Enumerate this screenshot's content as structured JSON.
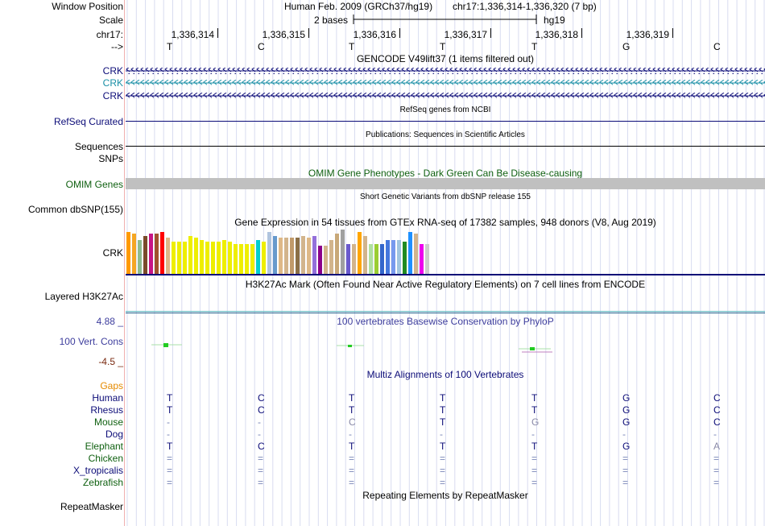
{
  "labels": {
    "window_position": "Window Position",
    "scale": "Scale",
    "chrom": "chr17:",
    "strand": "-->",
    "crk1": "CRK",
    "crk2": "CRK",
    "crk3": "CRK",
    "refseq": "RefSeq Curated",
    "sequences": "Sequences",
    "snps": "SNPs",
    "omim": "OMIM Genes",
    "dbsnp": "Common dbSNP(155)",
    "gtex_gene": "CRK",
    "h3k27ac": "Layered H3K27Ac",
    "cons_max": "4.88 _",
    "cons": "100 Vert. Cons",
    "cons_min": "-4.5 _",
    "gaps": "Gaps",
    "repeatmasker": "RepeatMasker"
  },
  "header": {
    "assembly": "Human Feb. 2009 (GRCh37/hg19)",
    "position": "chr17:1,336,314-1,336,320 (7 bp)",
    "scale_text": "2 bases",
    "scale_db": "hg19"
  },
  "ruler": {
    "positions": [
      "1,336,314",
      "1,336,315",
      "1,336,316",
      "1,336,317",
      "1,336,318",
      "1,336,319"
    ],
    "bases": [
      "T",
      "C",
      "T",
      "T",
      "T",
      "G",
      "C"
    ]
  },
  "tracks": {
    "gencode": "GENCODE V49lift37 (1 items filtered out)",
    "refseq": "RefSeq genes from NCBI",
    "publications": "Publications: Sequences in Scientific Articles",
    "omim": "OMIM Gene Phenotypes - Dark Green Can Be Disease-causing",
    "dbsnp": "Short Genetic Variants from dbSNP release 155",
    "gtex": "Gene Expression in 54 tissues from GTEx RNA-seq of 17382 samples, 948 donors (V8, Aug 2019)",
    "h3k27ac": "H3K27Ac Mark (Often Found Near Active Regulatory Elements) on 7 cell lines from ENCODE",
    "conservation": "100 vertebrates Basewise Conservation by PhyloP",
    "multiz": "Multiz Alignments of 100 Vertebrates",
    "repeatmasker": "Repeating Elements by RepeatMasker"
  },
  "colors": {
    "navy": "#0c0c78",
    "teal": "#1a8fa6",
    "green": "#0f6010",
    "orange": "#e58a00",
    "gtex_bars": [
      "#ff9900",
      "#f5a623",
      "#8fbc8f",
      "#7a4a2a",
      "#c71585",
      "#a0522d",
      "#ff0000",
      "#deb887",
      "#eeee00",
      "#eeee00",
      "#eeee00",
      "#eeee00",
      "#eeee00",
      "#eeee00",
      "#eeee00",
      "#eeee00",
      "#eeee00",
      "#eeee00",
      "#eeee00",
      "#eeee00",
      "#eeee00",
      "#eeee00",
      "#eeee00",
      "#00ced1",
      "#eeee00",
      "#b0c4de",
      "#6699cc",
      "#deb887",
      "#d2b48c",
      "#c19a6b",
      "#8b6f47",
      "#d2b48c",
      "#deb887",
      "#9370db",
      "#8b008b",
      "#d2b48c",
      "#d2b48c",
      "#c8a878",
      "#a0a0a0",
      "#6a5acd",
      "#d2b48c",
      "#ffa500",
      "#d2b48c",
      "#b0e0a0",
      "#9acd32",
      "#3366cc",
      "#4477dd",
      "#7799ee",
      "#a0c4e0",
      "#228b22",
      "#1e90ff",
      "#d2b48c",
      "#ee00ee",
      "#cccccc"
    ]
  },
  "gtex_values": [
    42,
    40,
    34,
    38,
    40,
    40,
    42,
    36,
    32,
    32,
    32,
    38,
    36,
    34,
    32,
    32,
    32,
    34,
    32,
    30,
    30,
    30,
    30,
    34,
    32,
    42,
    38,
    36,
    36,
    36,
    36,
    38,
    36,
    38,
    28,
    28,
    34,
    40,
    44,
    30,
    30,
    42,
    38,
    30,
    30,
    30,
    34,
    34,
    34,
    32,
    42,
    40,
    30,
    30
  ],
  "multiz": {
    "species": [
      "Human",
      "Rhesus",
      "Mouse",
      "Dog",
      "Elephant",
      "Chicken",
      "X_tropicalis",
      "Zebrafish"
    ],
    "rows": [
      [
        "T",
        "C",
        "T",
        "T",
        "T",
        "G",
        "C"
      ],
      [
        "T",
        "C",
        "T",
        "T",
        "T",
        "G",
        "C"
      ],
      [
        "-",
        "-",
        "C",
        "T",
        "G",
        "G",
        "C"
      ],
      [
        "-",
        "-",
        "-",
        "-",
        "-",
        "-",
        "-"
      ],
      [
        "T",
        "C",
        "T",
        "T",
        "T",
        "G",
        "A"
      ],
      [
        "=",
        "=",
        "=",
        "=",
        "=",
        "=",
        "="
      ],
      [
        "=",
        "=",
        "=",
        "=",
        "=",
        "=",
        "="
      ],
      [
        "=",
        "=",
        "=",
        "=",
        "=",
        "=",
        "="
      ]
    ]
  }
}
